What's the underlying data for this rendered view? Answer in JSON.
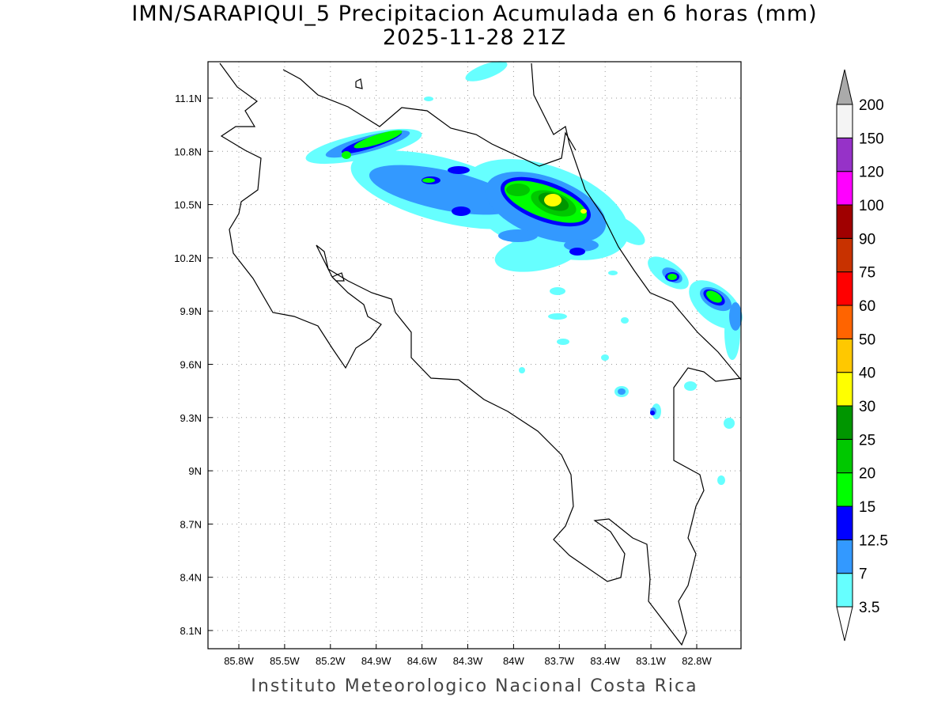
{
  "title_line1": "IMN/SARAPIQUI_5 Precipitacion Acumulada en 6 horas (mm)",
  "title_line2": "2025-11-28 21Z",
  "footer": "Instituto Meteorologico Nacional Costa Rica",
  "lon_labels": [
    "85.8W",
    "85.5W",
    "85.2W",
    "84.9W",
    "84.6W",
    "84.3W",
    "84W",
    "83.7W",
    "83.4W",
    "83.1W",
    "82.8W"
  ],
  "lat_labels": [
    "11.1N",
    "10.8N",
    "10.5N",
    "10.2N",
    "9.9N",
    "9.6N",
    "9.3N",
    "9N",
    "8.7N",
    "8.4N",
    "8.1N"
  ],
  "colorbar": {
    "labels": [
      "3.5",
      "7",
      "12.5",
      "15",
      "20",
      "25",
      "30",
      "40",
      "50",
      "60",
      "75",
      "90",
      "100",
      "120",
      "150",
      "200"
    ],
    "colors": [
      "#66ffff",
      "#3399ff",
      "#0000ff",
      "#00ff00",
      "#00c800",
      "#009600",
      "#ffff00",
      "#ffc800",
      "#ff6400",
      "#ff0000",
      "#c83200",
      "#a00000",
      "#ff00ff",
      "#9632c8",
      "#f4f4f4"
    ],
    "over_color": "#aaaaaa",
    "under_color": "#ffffff"
  }
}
